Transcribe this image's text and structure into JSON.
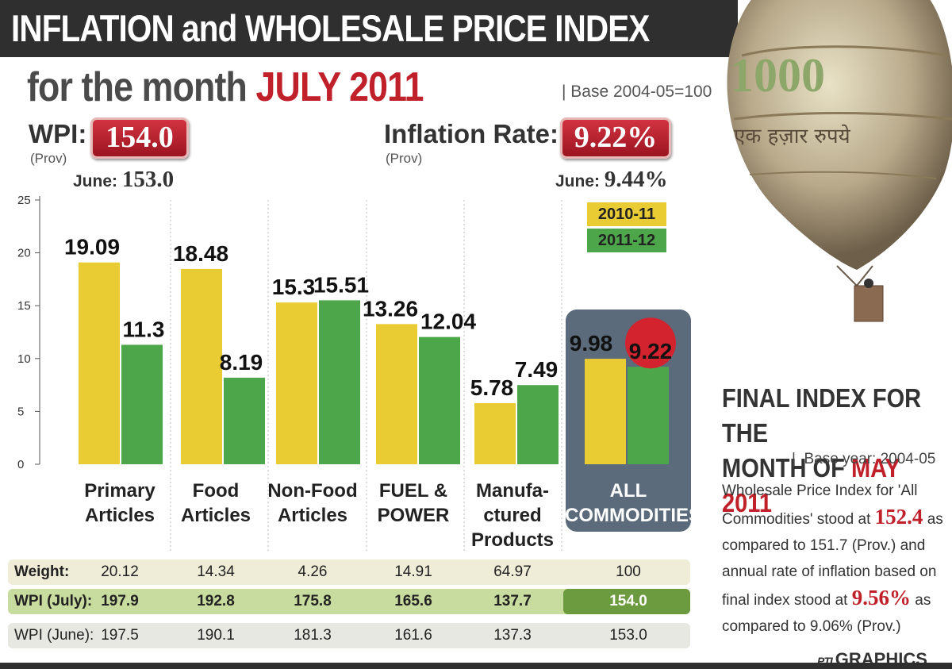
{
  "header": {
    "title": "INFLATION and WHOLESALE PRICE INDEX",
    "subtitle_prefix": "for the month",
    "subtitle_month": "JULY 2011",
    "base": "Base 2004-05=100"
  },
  "wpi": {
    "label": "WPI:",
    "value": "154.0",
    "prov": "(Prov)",
    "june_label": "June:",
    "june_value": "153.0"
  },
  "inflation": {
    "label": "Inflation Rate:",
    "value": "9.22%",
    "prov": "(Prov)",
    "june_label": "June:",
    "june_value": "9.44%"
  },
  "balloon": {
    "note_text": "एक हज़ार रुपये",
    "note_number": "1000"
  },
  "chart_data": {
    "type": "bar",
    "categories": [
      "Primary Articles",
      "Food Articles",
      "Non-Food Articles",
      "FUEL & POWER",
      "Manufa-ctured Products",
      "ALL COMMODITIES"
    ],
    "series": [
      {
        "name": "2010-11",
        "values": [
          19.09,
          18.48,
          15.3,
          13.26,
          5.78,
          9.98
        ],
        "labels": [
          "19.09",
          "18.48",
          "15.3",
          "13.26",
          "5.78",
          "9.98"
        ],
        "color": "#e9cb34"
      },
      {
        "name": "2011-12",
        "values": [
          11.3,
          8.19,
          15.51,
          12.04,
          7.49,
          9.22
        ],
        "labels": [
          "11.3",
          "8.19",
          "15.51",
          "12.04",
          "7.49",
          "9.22"
        ],
        "color": "#4ea64a"
      }
    ],
    "yticks": [
      "0",
      "5",
      "10",
      "15",
      "20",
      "25"
    ],
    "ylim": [
      0,
      25
    ],
    "category_lines": [
      [
        "Primary",
        "Articles"
      ],
      [
        "Food",
        "Articles"
      ],
      [
        "Non-Food",
        "Articles"
      ],
      [
        "FUEL &",
        "POWER"
      ],
      [
        "Manufa-",
        "ctured",
        "Products"
      ],
      [
        "ALL",
        "COMMODITIES"
      ]
    ],
    "highlight_color": "#d2232f",
    "all_box_color": "#5b6b7b"
  },
  "table": {
    "rows": [
      {
        "label": "Weight:",
        "values": [
          "20.12",
          "14.34",
          "4.26",
          "14.91",
          "64.97",
          "100"
        ]
      },
      {
        "label": "WPI (July):",
        "values": [
          "197.9",
          "192.8",
          "175.8",
          "165.6",
          "137.7",
          "154.0"
        ]
      },
      {
        "label": "WPI (June):",
        "values": [
          "197.5",
          "190.1",
          "181.3",
          "161.6",
          "137.3",
          "153.0"
        ]
      }
    ]
  },
  "side": {
    "title_l1": "FINAL INDEX FOR THE",
    "title_l2a": "MONTH OF",
    "title_l2b": "MAY 2011",
    "base": "Base year: 2004-05",
    "t1": "Wholesale Price Index for 'All Commodities' stood at",
    "n1": "152.4",
    "t2": "as compared to 151.7 (Prov.) and annual rate of inflation based on final index stood at",
    "n2": "9.56%",
    "t3": "as compared to 9.06% (Prov.)"
  },
  "credit": {
    "pti": "PTI",
    "text": "GRAPHICS"
  }
}
